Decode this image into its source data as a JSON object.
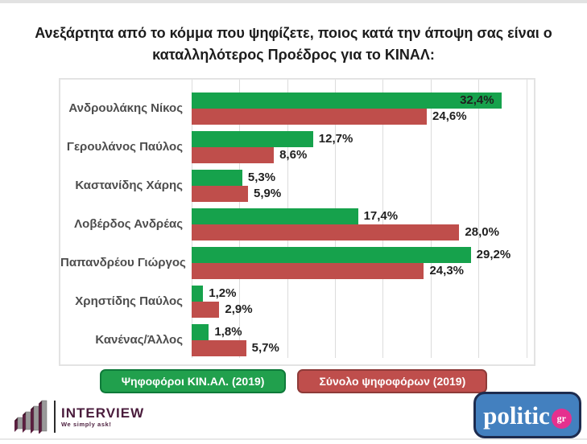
{
  "title": "Ανεξάρτητα από το κόμμα που ψηφίζετε, ποιος κατά την άποψη σας είναι ο\nκαταλληλότερος Προέδρος για το ΚΙΝΑΛ:",
  "chart_data": {
    "type": "bar",
    "orientation": "horizontal",
    "title": "Ανεξάρτητα από το κόμμα που ψηφίζετε, ποιος κατά την άποψη σας είναι ο καταλληλότερος Προέδρος για το ΚΙΝΑΛ:",
    "categories": [
      "Ανδρουλάκης Νίκος",
      "Γερουλάνος Παύλος",
      "Καστανίδης Χάρης",
      "Λοβέρδος Ανδρέας",
      "Παπανδρέου Γιώργος",
      "Χρηστίδης Παύλος",
      "Κανένας/Άλλος"
    ],
    "series": [
      {
        "name": "Ψηφοφόροι ΚΙΝ.ΑΛ. (2019)",
        "color": "#16a24c",
        "values": [
          32.4,
          12.7,
          5.3,
          17.4,
          29.2,
          1.2,
          1.8
        ]
      },
      {
        "name": "Σύνολο ψηφοφόρων (2019)",
        "color": "#bf4e4b",
        "values": [
          24.6,
          8.6,
          5.9,
          28.0,
          24.3,
          2.9,
          5.7
        ]
      }
    ],
    "value_suffix": "%",
    "decimal_separator": ",",
    "xlim": [
      0,
      35.8
    ],
    "gridline_step": 5,
    "grid": true,
    "legend_position": "bottom"
  },
  "legend": {
    "items": [
      {
        "label": "Ψηφοφόροι ΚΙΝ.ΑΛ. (2019)",
        "fill": "#21a04d",
        "border": "#0f7a3a"
      },
      {
        "label": "Σύνολο ψηφοφόρων (2019)",
        "fill": "#bf4e4c",
        "border": "#8e3b39"
      }
    ]
  },
  "footer": {
    "interview": {
      "name": "INTERVIEW",
      "tagline": "We simply ask!",
      "icon": "bar-chart-3d-icon",
      "brand_color": "#4a1c3c"
    },
    "politic": {
      "name": "politic",
      "suffix": "gr",
      "fill": "#4380bf",
      "border": "#1d2b4e",
      "accent": "#e5308e"
    }
  },
  "colors": {
    "grid": "#dcdcdc",
    "chart_border": "#e3e3e3",
    "category_label": "#4d4d4d",
    "value_label": "#1f1f1f",
    "title": "#1c1c1c"
  }
}
